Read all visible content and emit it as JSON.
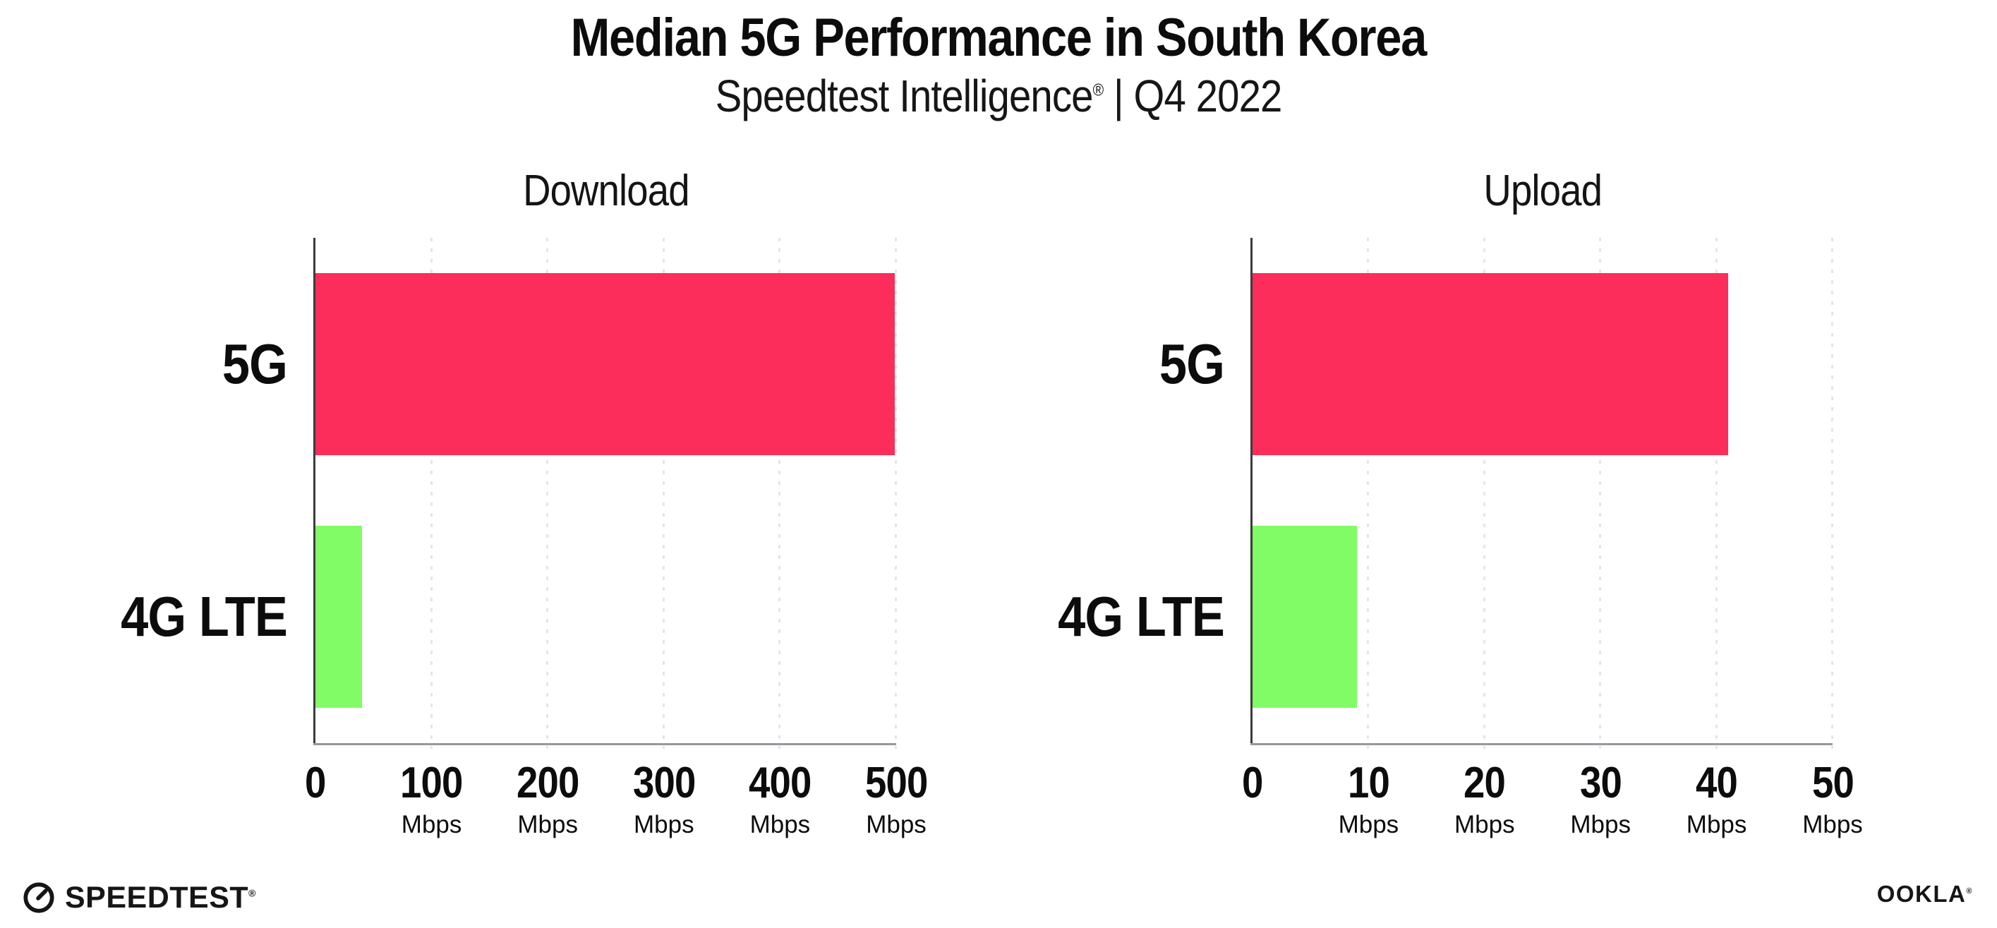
{
  "header": {
    "title": "Median 5G Performance in South Korea",
    "subtitle_brand": "Speedtest Intelligence",
    "subtitle_reg": "®",
    "subtitle_rest": " | Q4 2022"
  },
  "colors": {
    "bar_5g": "#fc2d5a",
    "bar_4g": "#81fb66",
    "y_axis": "#3c3c3c",
    "x_axis": "#97979f",
    "gridline": "#e4e4ec",
    "text": "#0c0c0c"
  },
  "chart_data": [
    {
      "type": "bar",
      "orientation": "horizontal",
      "title": "Download",
      "categories": [
        "5G",
        "4G LTE"
      ],
      "values": [
        499,
        40
      ],
      "unit": "Mbps",
      "xlim": [
        0,
        500
      ],
      "ticks": [
        0,
        100,
        200,
        300,
        400,
        500
      ],
      "grid": true,
      "legend": "none",
      "bar_colors": [
        "#fc2d5a",
        "#81fb66"
      ]
    },
    {
      "type": "bar",
      "orientation": "horizontal",
      "title": "Upload",
      "categories": [
        "5G",
        "4G LTE"
      ],
      "values": [
        41,
        9
      ],
      "unit": "Mbps",
      "xlim": [
        0,
        50
      ],
      "ticks": [
        0,
        10,
        20,
        30,
        40,
        50
      ],
      "grid": true,
      "legend": "none",
      "bar_colors": [
        "#fc2d5a",
        "#81fb66"
      ]
    }
  ],
  "footer": {
    "speedtest_label": "SPEEDTEST",
    "speedtest_reg": "®",
    "ookla_label": "OOKLA",
    "ookla_reg": "®"
  }
}
